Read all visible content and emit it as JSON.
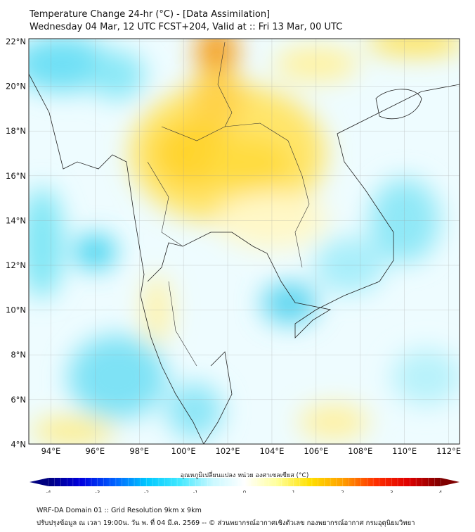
{
  "header": {
    "title": "Temperature Change 24-hr (°C) - [Data Assimilation]",
    "subtitle": "Wednesday 04 Mar, 12 UTC FCST+204, Valid at :: Fri 13 Mar, 00 UTC"
  },
  "map": {
    "lat_labels": [
      "22°N",
      "20°N",
      "18°N",
      "16°N",
      "14°N",
      "12°N",
      "10°N",
      "8°N",
      "6°N",
      "4°N"
    ],
    "lat_values": [
      22,
      20,
      18,
      16,
      14,
      12,
      10,
      8,
      6,
      4
    ],
    "lon_labels": [
      "94°E",
      "96°E",
      "98°E",
      "100°E",
      "102°E",
      "104°E",
      "106°E",
      "108°E",
      "110°E",
      "112°E"
    ],
    "lon_values": [
      94,
      96,
      98,
      100,
      102,
      104,
      106,
      108,
      110,
      112
    ]
  },
  "colorbar": {
    "label": "อุณหภูมิเปลี่ยนแปลง หน่วย องศาเซลเซียส (°C)",
    "ticks": [
      "-4",
      "-3",
      "-2",
      "-1",
      "0",
      "1",
      "2",
      "3",
      "4"
    ],
    "range": [
      -4,
      4
    ],
    "colors": [
      "#00007f",
      "#0000e0",
      "#0060ff",
      "#00c8ff",
      "#40e8ff",
      "#c8f8ff",
      "#ffffff",
      "#ffff9a",
      "#ffe000",
      "#ffa000",
      "#ff3000",
      "#e00000",
      "#7f0000"
    ]
  },
  "footer": {
    "line1": "WRF-DA Domain 01 :: Grid Resolution 9km x 9km",
    "line2": "ปรับปรุงข้อมูล ณ เวลา 19:00น. วัน พ. ที่ 04 มี.ค. 2569 -- © ส่วนพยากรณ์อากาศเชิงตัวเลข กองพยากรณ์อากาศ กรมอุตุนิยมวิทยา"
  }
}
